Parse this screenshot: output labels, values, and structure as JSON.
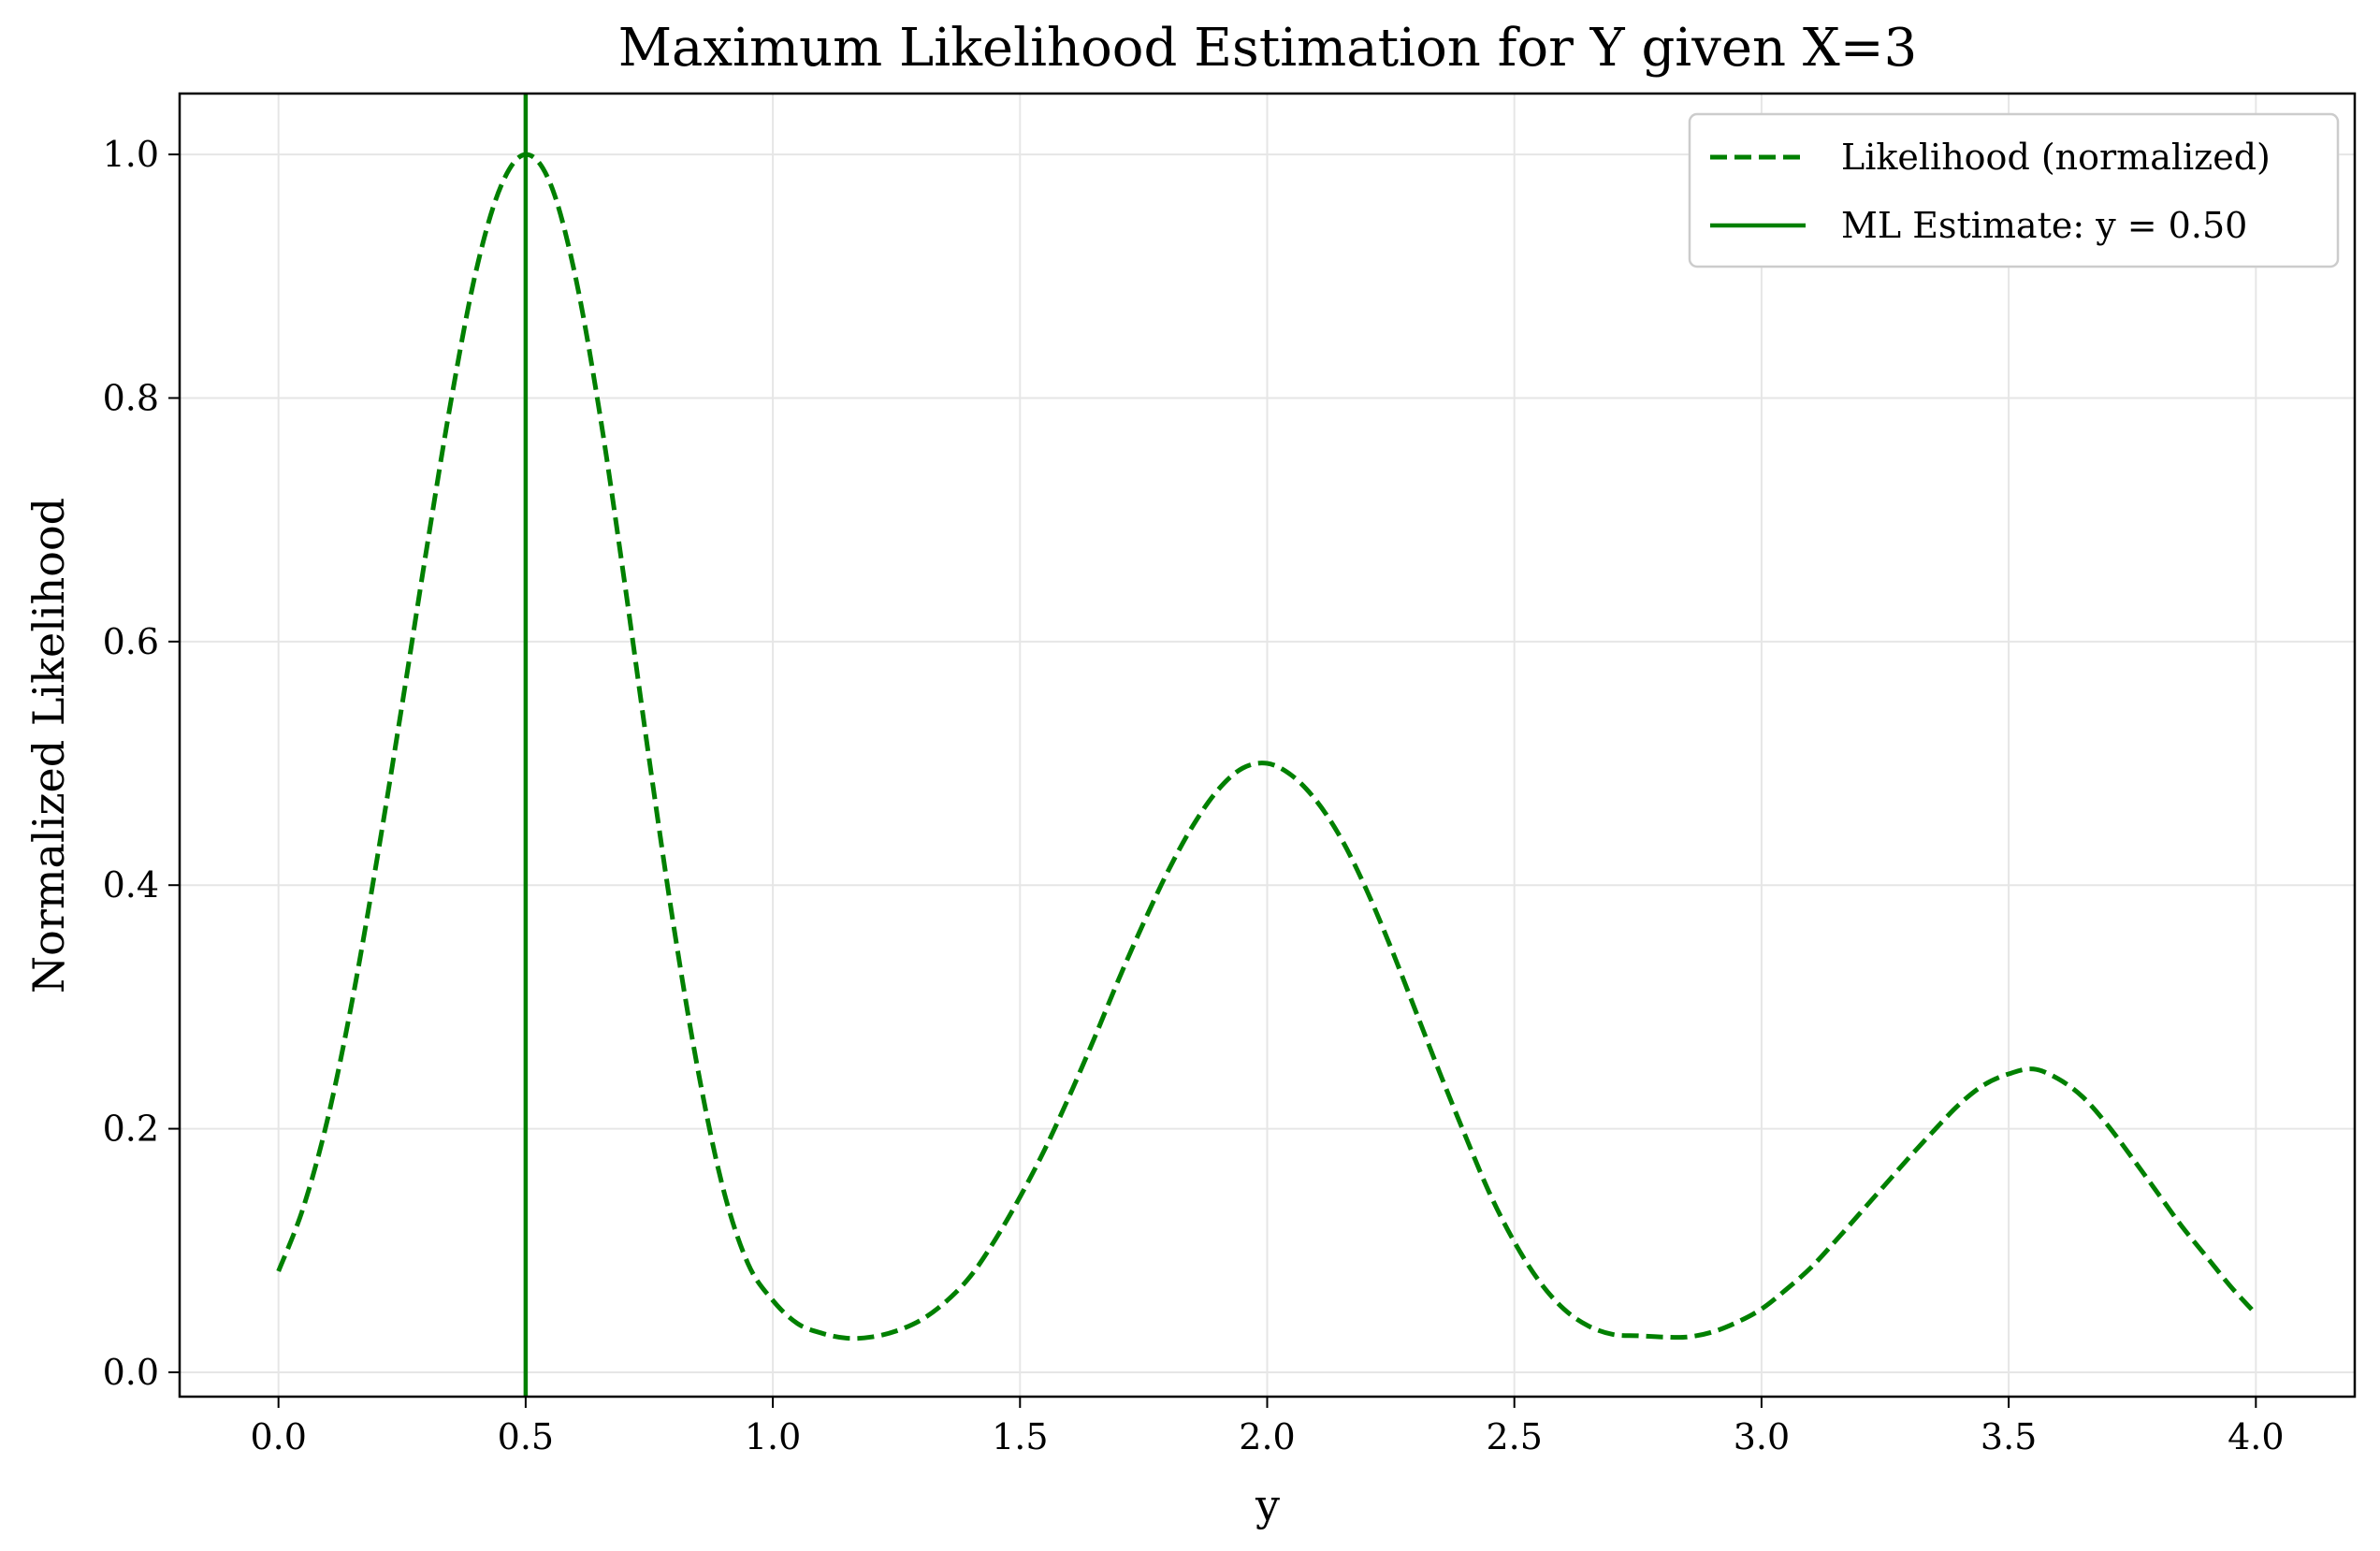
{
  "chart_data": {
    "type": "line",
    "title": "Maximum Likelihood Estimation for Y given X=3",
    "xlabel": "y",
    "ylabel": "Normalized Likelihood",
    "xlim": [
      -0.2,
      4.2
    ],
    "ylim": [
      -0.02,
      1.05
    ],
    "x_ticks": [
      "0.0",
      "0.5",
      "1.0",
      "1.5",
      "2.0",
      "2.5",
      "3.0",
      "3.5",
      "4.0"
    ],
    "y_ticks": [
      "0.0",
      "0.2",
      "0.4",
      "0.6",
      "0.8",
      "1.0"
    ],
    "grid": true,
    "legend_position": "top-right",
    "series": [
      {
        "name": "Likelihood (normalized)",
        "style": "dashed",
        "color": "#008000",
        "x": [
          0.0,
          0.05,
          0.1,
          0.15,
          0.2,
          0.25,
          0.3,
          0.35,
          0.4,
          0.45,
          0.5,
          0.55,
          0.6,
          0.65,
          0.7,
          0.75,
          0.8,
          0.85,
          0.9,
          0.95,
          1.0,
          1.05,
          1.1,
          1.15,
          1.2,
          1.25,
          1.3,
          1.35,
          1.4,
          1.45,
          1.5,
          1.55,
          1.6,
          1.65,
          1.7,
          1.75,
          1.8,
          1.85,
          1.9,
          1.95,
          2.0,
          2.05,
          2.1,
          2.15,
          2.2,
          2.25,
          2.3,
          2.35,
          2.4,
          2.45,
          2.5,
          2.55,
          2.6,
          2.65,
          2.7,
          2.75,
          2.8,
          2.85,
          2.9,
          2.95,
          3.0,
          3.05,
          3.1,
          3.15,
          3.2,
          3.25,
          3.3,
          3.35,
          3.4,
          3.45,
          3.5,
          3.55,
          3.6,
          3.65,
          3.7,
          3.75,
          3.8,
          3.85,
          3.9,
          3.95,
          4.0
        ],
        "y": [
          0.083,
          0.135,
          0.209,
          0.307,
          0.423,
          0.548,
          0.677,
          0.8,
          0.905,
          0.974,
          1.0,
          0.976,
          0.901,
          0.787,
          0.649,
          0.503,
          0.365,
          0.245,
          0.15,
          0.089,
          0.059,
          0.04,
          0.032,
          0.028,
          0.029,
          0.034,
          0.043,
          0.058,
          0.079,
          0.109,
          0.144,
          0.183,
          0.227,
          0.274,
          0.323,
          0.369,
          0.412,
          0.449,
          0.478,
          0.496,
          0.5,
          0.49,
          0.469,
          0.438,
          0.397,
          0.349,
          0.297,
          0.245,
          0.195,
          0.147,
          0.107,
          0.075,
          0.052,
          0.038,
          0.031,
          0.03,
          0.029,
          0.029,
          0.033,
          0.041,
          0.052,
          0.068,
          0.086,
          0.108,
          0.131,
          0.154,
          0.177,
          0.199,
          0.22,
          0.236,
          0.245,
          0.249,
          0.241,
          0.226,
          0.203,
          0.176,
          0.148,
          0.12,
          0.095,
          0.07,
          0.048
        ]
      },
      {
        "name": "ML Estimate: y = 0.50",
        "style": "solid",
        "color": "#008000",
        "type": "vline",
        "x_value": 0.5
      }
    ]
  }
}
